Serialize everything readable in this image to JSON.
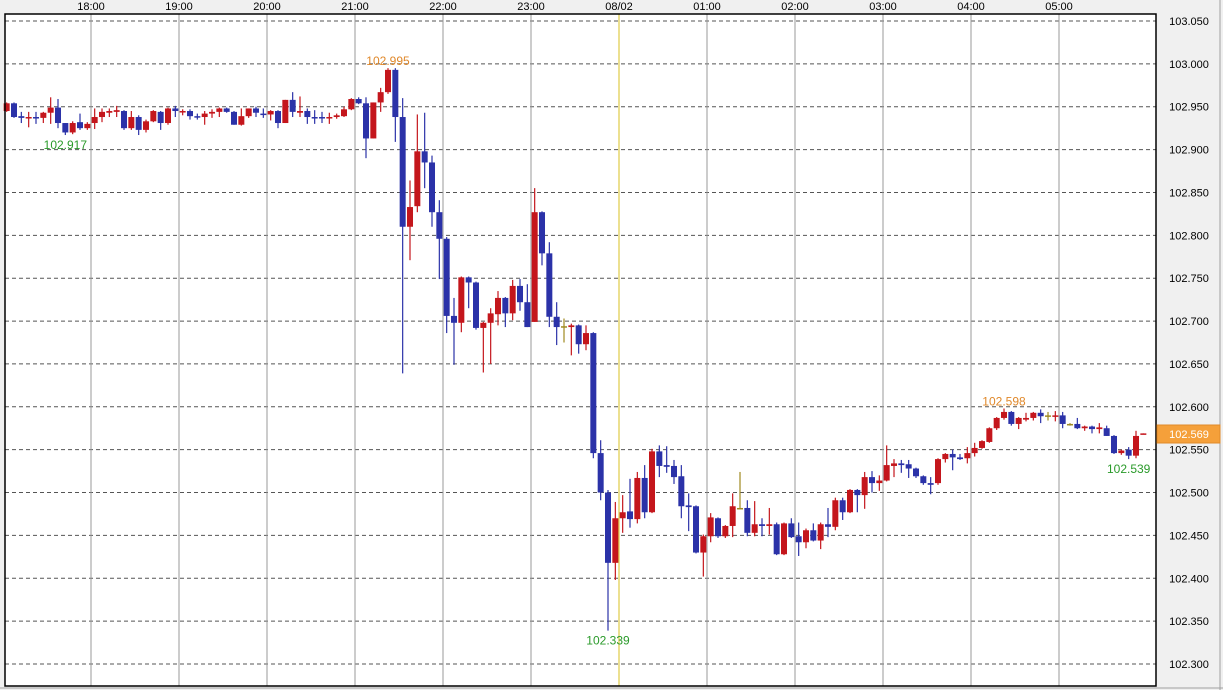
{
  "chart_data": {
    "type": "candlestick",
    "interval_minutes": 5,
    "x_tick_labels": [
      "18:00",
      "19:00",
      "20:00",
      "21:00",
      "22:00",
      "23:00",
      "08/02",
      "01:00",
      "02:00",
      "03:00",
      "04:00",
      "05:00"
    ],
    "y_tick_labels": [
      "103.050",
      "103.000",
      "102.950",
      "102.900",
      "102.850",
      "102.800",
      "102.750",
      "102.700",
      "102.650",
      "102.600",
      "102.550",
      "102.500",
      "102.450",
      "102.400",
      "102.350",
      "102.300"
    ],
    "ylim": [
      102.28,
      103.058
    ],
    "xlim": [
      "17:00",
      "05:58"
    ],
    "grid": true,
    "day_boundary": "08/02",
    "current_price": "102.569",
    "annotations": [
      {
        "text": "102.995",
        "kind": "high",
        "time": "21:20",
        "price": 102.995
      },
      {
        "text": "102.917",
        "kind": "low",
        "time": "17:40",
        "price": 102.917
      },
      {
        "text": "102.339",
        "kind": "low",
        "time": "23:50",
        "price": 102.339
      },
      {
        "text": "102.598",
        "kind": "high",
        "time": "04:20",
        "price": 102.598
      },
      {
        "text": "102.539",
        "kind": "low",
        "time": "05:45",
        "price": 102.539
      }
    ],
    "columns": [
      "time",
      "open",
      "high",
      "low",
      "close"
    ],
    "candles": [
      [
        "17:00",
        102.945,
        102.955,
        102.944,
        102.954
      ],
      [
        "17:05",
        102.954,
        102.955,
        102.937,
        102.938
      ],
      [
        "17:10",
        102.939,
        102.944,
        102.931,
        102.937
      ],
      [
        "17:15",
        102.937,
        102.944,
        102.926,
        102.938
      ],
      [
        "17:20",
        102.938,
        102.944,
        102.93,
        102.937
      ],
      [
        "17:25",
        102.937,
        102.944,
        102.931,
        102.943
      ],
      [
        "17:30",
        102.943,
        102.961,
        102.93,
        102.949
      ],
      [
        "17:35",
        102.949,
        102.959,
        102.925,
        102.931
      ],
      [
        "17:40",
        102.931,
        102.931,
        102.917,
        102.92
      ],
      [
        "17:45",
        102.92,
        102.933,
        102.918,
        102.931
      ],
      [
        "17:50",
        102.932,
        102.942,
        102.923,
        102.925
      ],
      [
        "17:55",
        102.925,
        102.932,
        102.923,
        102.93
      ],
      [
        "18:00",
        102.931,
        102.948,
        102.924,
        102.938
      ],
      [
        "18:05",
        102.938,
        102.948,
        102.932,
        102.944
      ],
      [
        "18:10",
        102.943,
        102.948,
        102.938,
        102.945
      ],
      [
        "18:15",
        102.944,
        102.951,
        102.938,
        102.946
      ],
      [
        "18:20",
        102.945,
        102.946,
        102.923,
        102.925
      ],
      [
        "18:25",
        102.925,
        102.945,
        102.923,
        102.938
      ],
      [
        "18:30",
        102.938,
        102.94,
        102.917,
        102.923
      ],
      [
        "18:35",
        102.923,
        102.935,
        102.92,
        102.933
      ],
      [
        "18:40",
        102.933,
        102.946,
        102.932,
        102.945
      ],
      [
        "18:45",
        102.944,
        102.945,
        102.923,
        102.931
      ],
      [
        "18:50",
        102.931,
        102.949,
        102.929,
        102.948
      ],
      [
        "18:55",
        102.948,
        102.951,
        102.938,
        102.945
      ],
      [
        "19:00",
        102.944,
        102.947,
        102.94,
        102.945
      ],
      [
        "19:05",
        102.945,
        102.947,
        102.935,
        102.939
      ],
      [
        "19:10",
        102.939,
        102.942,
        102.935,
        102.938
      ],
      [
        "19:15",
        102.938,
        102.945,
        102.929,
        102.942
      ],
      [
        "19:20",
        102.942,
        102.947,
        102.937,
        102.944
      ],
      [
        "19:25",
        102.944,
        102.949,
        102.938,
        102.948
      ],
      [
        "19:30",
        102.948,
        102.949,
        102.943,
        102.944
      ],
      [
        "19:35",
        102.944,
        102.945,
        102.929,
        102.929
      ],
      [
        "19:40",
        102.929,
        102.948,
        102.928,
        102.939
      ],
      [
        "19:45",
        102.939,
        102.948,
        102.937,
        102.948
      ],
      [
        "19:50",
        102.948,
        102.95,
        102.938,
        102.943
      ],
      [
        "19:55",
        102.942,
        102.948,
        102.937,
        102.941
      ],
      [
        "20:00",
        102.941,
        102.946,
        102.934,
        102.945
      ],
      [
        "20:05",
        102.945,
        102.946,
        102.925,
        102.931
      ],
      [
        "20:10",
        102.931,
        102.958,
        102.931,
        102.958
      ],
      [
        "20:15",
        102.958,
        102.967,
        102.938,
        102.944
      ],
      [
        "20:20",
        102.943,
        102.962,
        102.938,
        102.945
      ],
      [
        "20:25",
        102.945,
        102.948,
        102.93,
        102.938
      ],
      [
        "20:30",
        102.938,
        102.946,
        102.93,
        102.937
      ],
      [
        "20:35",
        102.938,
        102.944,
        102.931,
        102.937
      ],
      [
        "20:40",
        102.937,
        102.943,
        102.93,
        102.938
      ],
      [
        "20:45",
        102.938,
        102.942,
        102.936,
        102.94
      ],
      [
        "20:50",
        102.939,
        102.95,
        102.938,
        102.947
      ],
      [
        "20:55",
        102.947,
        102.96,
        102.946,
        102.959
      ],
      [
        "21:00",
        102.959,
        102.961,
        102.953,
        102.954
      ],
      [
        "21:05",
        102.954,
        102.961,
        102.89,
        102.913
      ],
      [
        "21:10",
        102.913,
        102.955,
        102.913,
        102.955
      ],
      [
        "21:15",
        102.955,
        102.972,
        102.944,
        102.967
      ],
      [
        "21:20",
        102.967,
        102.995,
        102.965,
        102.993
      ],
      [
        "21:25",
        102.993,
        102.995,
        102.909,
        102.938
      ],
      [
        "21:30",
        102.938,
        102.96,
        102.639,
        102.81
      ],
      [
        "21:35",
        102.81,
        102.864,
        102.771,
        102.833
      ],
      [
        "21:40",
        102.834,
        102.941,
        102.827,
        102.898
      ],
      [
        "21:45",
        102.898,
        102.943,
        102.855,
        102.885
      ],
      [
        "21:50",
        102.885,
        102.893,
        102.81,
        102.827
      ],
      [
        "21:55",
        102.827,
        102.841,
        102.749,
        102.796
      ],
      [
        "22:00",
        102.796,
        102.798,
        102.686,
        102.706
      ],
      [
        "22:05",
        102.706,
        102.727,
        102.649,
        102.698
      ],
      [
        "22:10",
        102.698,
        102.752,
        102.687,
        102.751
      ],
      [
        "22:15",
        102.751,
        102.752,
        102.715,
        102.745
      ],
      [
        "22:20",
        102.745,
        102.746,
        102.69,
        102.692
      ],
      [
        "22:25",
        102.692,
        102.699,
        102.64,
        102.698
      ],
      [
        "22:30",
        102.698,
        102.715,
        102.65,
        102.709
      ],
      [
        "22:35",
        102.708,
        102.735,
        102.695,
        102.727
      ],
      [
        "22:40",
        102.727,
        102.728,
        102.693,
        102.709
      ],
      [
        "22:45",
        102.709,
        102.748,
        102.701,
        102.741
      ],
      [
        "22:50",
        102.741,
        102.749,
        102.712,
        102.722
      ],
      [
        "22:55",
        102.722,
        102.743,
        102.693,
        102.693
      ],
      [
        "23:00",
        102.699,
        102.855,
        102.699,
        102.827
      ],
      [
        "23:05",
        102.827,
        102.828,
        102.765,
        102.779
      ],
      [
        "23:10",
        102.779,
        102.792,
        102.693,
        102.705
      ],
      [
        "23:15",
        102.705,
        102.722,
        102.672,
        102.693
      ],
      [
        "23:20",
        102.694,
        102.703,
        102.675,
        102.694
      ],
      [
        "23:25",
        102.693,
        102.697,
        102.66,
        102.695
      ],
      [
        "23:30",
        102.695,
        102.696,
        102.662,
        102.673
      ],
      [
        "23:35",
        102.673,
        102.695,
        102.666,
        102.686
      ],
      [
        "23:40",
        102.686,
        102.687,
        102.54,
        102.546
      ],
      [
        "23:45",
        102.546,
        102.561,
        102.491,
        102.5
      ],
      [
        "23:50",
        102.5,
        102.503,
        102.339,
        102.418
      ],
      [
        "23:55",
        102.418,
        102.489,
        102.398,
        102.47
      ],
      [
        "00:00",
        102.47,
        102.497,
        102.453,
        102.477
      ],
      [
        "00:05",
        102.478,
        102.516,
        102.459,
        102.469
      ],
      [
        "00:10",
        102.469,
        102.524,
        102.464,
        102.517
      ],
      [
        "00:15",
        102.517,
        102.532,
        102.47,
        102.477
      ],
      [
        "00:20",
        102.477,
        102.551,
        102.476,
        102.548
      ],
      [
        "00:25",
        102.548,
        102.555,
        102.518,
        102.531
      ],
      [
        "00:30",
        102.532,
        102.554,
        102.523,
        102.53
      ],
      [
        "00:35",
        102.531,
        102.538,
        102.51,
        102.518
      ],
      [
        "00:40",
        102.519,
        102.532,
        102.47,
        102.484
      ],
      [
        "00:45",
        102.485,
        102.499,
        102.455,
        102.483
      ],
      [
        "00:50",
        102.484,
        102.485,
        102.429,
        102.43
      ],
      [
        "00:55",
        102.43,
        102.451,
        102.402,
        102.449
      ],
      [
        "01:00",
        102.449,
        102.476,
        102.442,
        102.471
      ],
      [
        "01:05",
        102.47,
        102.471,
        102.447,
        102.449
      ],
      [
        "01:10",
        102.449,
        102.462,
        102.447,
        102.461
      ],
      [
        "01:15",
        102.461,
        102.499,
        102.448,
        102.484
      ],
      [
        "01:20",
        102.482,
        102.524,
        102.481,
        102.482
      ],
      [
        "01:25",
        102.482,
        102.491,
        102.449,
        102.453
      ],
      [
        "01:30",
        102.453,
        102.49,
        102.449,
        102.463
      ],
      [
        "01:35",
        102.463,
        102.47,
        102.449,
        102.461
      ],
      [
        "01:40",
        102.461,
        102.482,
        102.451,
        102.463
      ],
      [
        "01:45",
        102.463,
        102.465,
        102.427,
        102.428
      ],
      [
        "01:50",
        102.428,
        102.465,
        102.427,
        102.464
      ],
      [
        "01:55",
        102.464,
        102.47,
        102.447,
        102.448
      ],
      [
        "02:00",
        102.449,
        102.465,
        102.426,
        102.442
      ],
      [
        "02:05",
        102.442,
        102.458,
        102.435,
        102.456
      ],
      [
        "02:10",
        102.456,
        102.464,
        102.443,
        102.444
      ],
      [
        "02:15",
        102.444,
        102.465,
        102.434,
        102.463
      ],
      [
        "02:20",
        102.463,
        102.482,
        102.448,
        102.46
      ],
      [
        "02:25",
        102.46,
        102.494,
        102.456,
        102.491
      ],
      [
        "02:30",
        102.491,
        102.494,
        102.468,
        102.477
      ],
      [
        "02:35",
        102.477,
        102.504,
        102.476,
        102.503
      ],
      [
        "02:40",
        102.503,
        102.504,
        102.477,
        102.497
      ],
      [
        "02:45",
        102.497,
        102.524,
        102.481,
        102.518
      ],
      [
        "02:50",
        102.518,
        102.525,
        102.5,
        102.511
      ],
      [
        "02:55",
        102.511,
        102.52,
        102.502,
        102.514
      ],
      [
        "03:00",
        102.514,
        102.555,
        102.513,
        102.532
      ],
      [
        "03:05",
        102.531,
        102.539,
        102.518,
        102.534
      ],
      [
        "03:10",
        102.534,
        102.538,
        102.523,
        102.532
      ],
      [
        "03:15",
        102.533,
        102.538,
        102.517,
        102.528
      ],
      [
        "03:20",
        102.528,
        102.529,
        102.517,
        102.519
      ],
      [
        "03:25",
        102.519,
        102.52,
        102.509,
        102.511
      ],
      [
        "03:30",
        102.511,
        102.518,
        102.498,
        102.509
      ],
      [
        "03:35",
        102.511,
        102.54,
        102.509,
        102.539
      ],
      [
        "03:40",
        102.539,
        102.546,
        102.535,
        102.545
      ],
      [
        "03:45",
        102.545,
        102.55,
        102.526,
        102.541
      ],
      [
        "03:50",
        102.541,
        102.545,
        102.538,
        102.539
      ],
      [
        "03:55",
        102.54,
        102.553,
        102.534,
        102.546
      ],
      [
        "04:00",
        102.546,
        102.558,
        102.542,
        102.552
      ],
      [
        "04:05",
        102.552,
        102.561,
        102.551,
        102.56
      ],
      [
        "04:10",
        102.559,
        102.576,
        102.558,
        102.575
      ],
      [
        "04:15",
        102.575,
        102.588,
        102.573,
        102.587
      ],
      [
        "04:20",
        102.587,
        102.598,
        102.585,
        102.594
      ],
      [
        "04:25",
        102.594,
        102.595,
        102.578,
        102.58
      ],
      [
        "04:30",
        102.58,
        102.588,
        102.574,
        102.587
      ],
      [
        "04:35",
        102.585,
        102.593,
        102.583,
        102.587
      ],
      [
        "04:40",
        102.587,
        102.594,
        102.584,
        102.593
      ],
      [
        "04:45",
        102.593,
        102.597,
        102.581,
        102.589
      ],
      [
        "04:50",
        102.59,
        102.594,
        102.584,
        102.59
      ],
      [
        "04:55",
        102.589,
        102.595,
        102.583,
        102.59
      ],
      [
        "05:00",
        102.59,
        102.594,
        102.575,
        102.58
      ],
      [
        "05:05",
        102.58,
        102.581,
        102.578,
        102.58
      ],
      [
        "05:10",
        102.58,
        102.587,
        102.574,
        102.575
      ],
      [
        "05:15",
        102.575,
        102.578,
        102.572,
        102.577
      ],
      [
        "05:20",
        102.577,
        102.578,
        102.569,
        102.574
      ],
      [
        "05:25",
        102.574,
        102.581,
        102.569,
        102.576
      ],
      [
        "05:30",
        102.575,
        102.578,
        102.566,
        102.566
      ],
      [
        "05:35",
        102.566,
        102.567,
        102.545,
        102.546
      ],
      [
        "05:40",
        102.546,
        102.55,
        102.544,
        102.549
      ],
      [
        "05:45",
        102.55,
        102.553,
        102.539,
        102.543
      ],
      [
        "05:50",
        102.543,
        102.572,
        102.54,
        102.566
      ],
      [
        "05:55",
        102.568,
        102.569,
        102.568,
        102.569
      ]
    ]
  },
  "colors": {
    "up": "#c4161c",
    "down": "#2b32a8",
    "doji": "#a08a20",
    "high_label": "#e0882a",
    "low_label": "#2a9a2a",
    "current_price_bg": "#f5a03a",
    "day_line": "#d8c020",
    "grid": "#555555",
    "hour_line": "#999999"
  }
}
